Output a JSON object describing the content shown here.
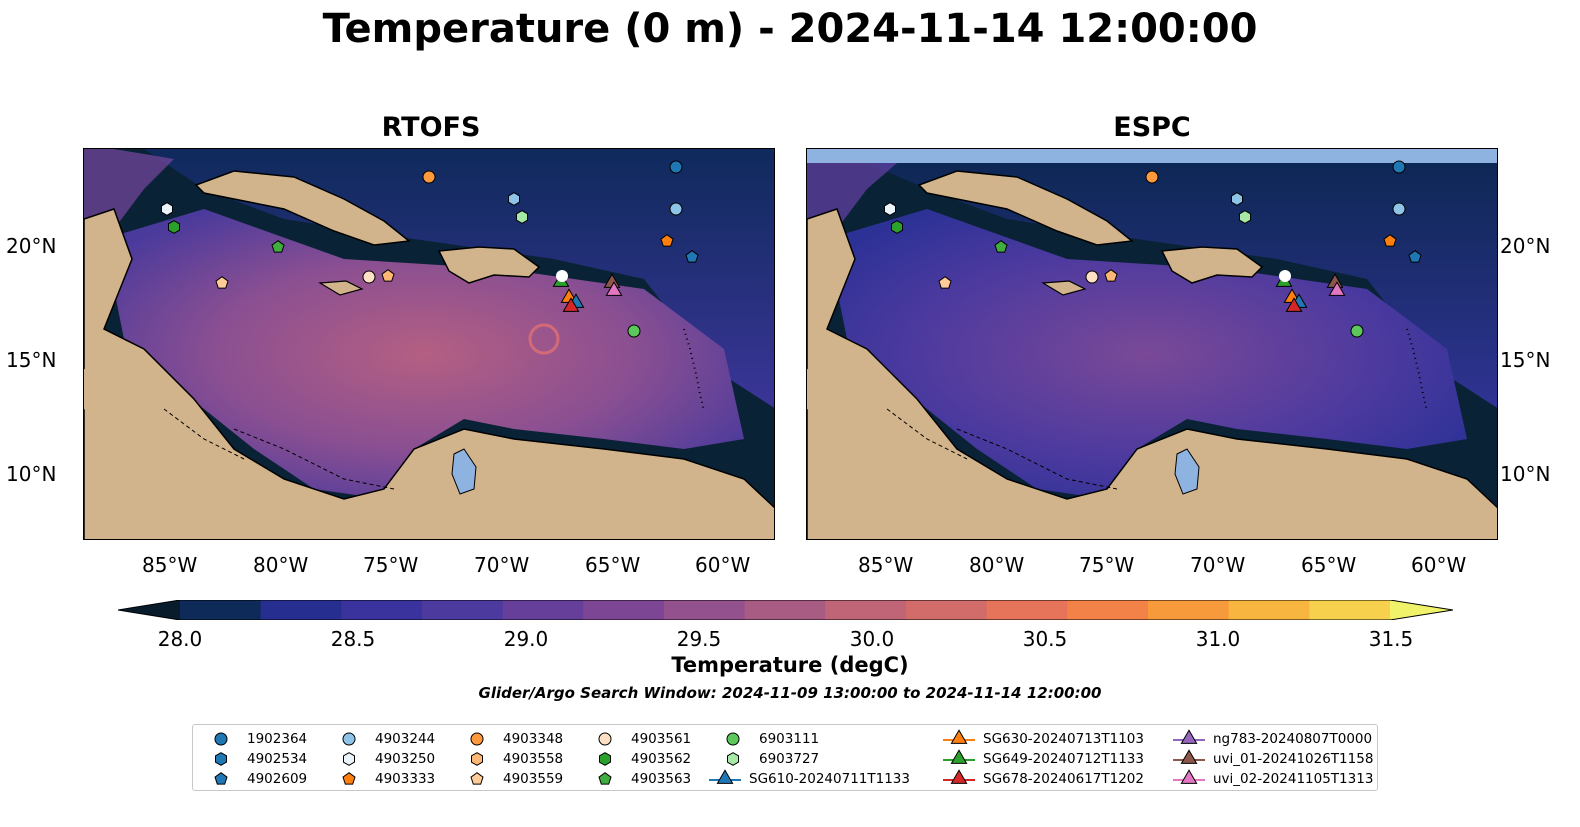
{
  "title": "Temperature (0 m) - 2024-11-14 12:00:00",
  "panels": [
    {
      "title": "RTOFS"
    },
    {
      "title": "ESPC"
    }
  ],
  "lon_ticks": [
    "85°W",
    "80°W",
    "75°W",
    "70°W",
    "65°W",
    "60°W"
  ],
  "lat_ticks": [
    "20°N",
    "15°N",
    "10°N"
  ],
  "colorbar": {
    "label": "Temperature (degC)",
    "ticks": [
      "28.0",
      "28.5",
      "29.0",
      "29.5",
      "30.0",
      "30.5",
      "31.0",
      "31.5"
    ],
    "colors": [
      "#0d2a59",
      "#262f8f",
      "#3a339e",
      "#4d3a9f",
      "#663f9b",
      "#7c4695",
      "#93518e",
      "#a85c84",
      "#bf6577",
      "#d16c6a",
      "#e6745b",
      "#f38249",
      "#f79a3c",
      "#f8b53f",
      "#f7d14d"
    ]
  },
  "search_window": "Glider/Argo Search Window: 2024-11-09 13:00:00 to 2024-11-14 12:00:00",
  "legend": [
    {
      "label": "1902364",
      "marker": "circle",
      "color": "#1f77b4"
    },
    {
      "label": "4902534",
      "marker": "hexagon",
      "color": "#1f77b4"
    },
    {
      "label": "4902609",
      "marker": "pentagon",
      "color": "#1f77b4"
    },
    {
      "label": "4903244",
      "marker": "circle",
      "color": "#8ec4e8"
    },
    {
      "label": "4903250",
      "marker": "hexagon",
      "color": "#e9f4fb"
    },
    {
      "label": "4903333",
      "marker": "pentagon",
      "color": "#ff7f0e"
    },
    {
      "label": "4903348",
      "marker": "circle",
      "color": "#ff9a3c"
    },
    {
      "label": "4903558",
      "marker": "hexagon",
      "color": "#ffb774"
    },
    {
      "label": "4903559",
      "marker": "pentagon",
      "color": "#ffcc99"
    },
    {
      "label": "4903561",
      "marker": "circle",
      "color": "#ffe0c4"
    },
    {
      "label": "4903562",
      "marker": "hexagon",
      "color": "#2ca02c"
    },
    {
      "label": "4903563",
      "marker": "pentagon",
      "color": "#3fae3f"
    },
    {
      "label": "6903111",
      "marker": "circle",
      "color": "#5cc85c"
    },
    {
      "label": "6903727",
      "marker": "hexagon",
      "color": "#a6e8a6"
    },
    {
      "label": "SG610-20240711T1133",
      "marker": "triangle",
      "color": "#1f77b4"
    },
    {
      "label": "SG630-20240713T1103",
      "marker": "triangle",
      "color": "#ff7f0e"
    },
    {
      "label": "SG649-20240712T1133",
      "marker": "triangle",
      "color": "#2ca02c"
    },
    {
      "label": "SG678-20240617T1202",
      "marker": "triangle",
      "color": "#d62728"
    },
    {
      "label": "ng783-20240807T0000",
      "marker": "triangle",
      "color": "#9467bd"
    },
    {
      "label": "uvi_01-20241026T1158",
      "marker": "triangle",
      "color": "#8c564b"
    },
    {
      "label": "uvi_02-20241105T1313",
      "marker": "triangle",
      "color": "#e377c2"
    }
  ],
  "colors": {
    "land": "#d2b48c",
    "coast": "#000000",
    "lake": "#8fb3e0",
    "deep_water": "#0a2236"
  }
}
